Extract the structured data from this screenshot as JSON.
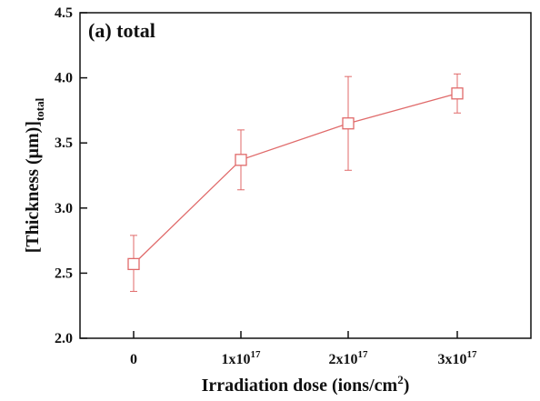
{
  "chart_data": {
    "type": "line",
    "title": "(a) total",
    "xlabel": {
      "main": "Irradiation dose (ions/cm",
      "sup": "2",
      "close": ")"
    },
    "ylabel": {
      "main": "[Thickness (μm)]",
      "sub": "total"
    },
    "x_ticks": [
      {
        "base": "0",
        "exp": ""
      },
      {
        "base": "1x10",
        "exp": "17"
      },
      {
        "base": "2x10",
        "exp": "17"
      },
      {
        "base": "3x10",
        "exp": "17"
      }
    ],
    "y_ticks": [
      "2.0",
      "2.5",
      "3.0",
      "3.5",
      "4.0",
      "4.5"
    ],
    "ylim": [
      2.0,
      4.5
    ],
    "x": [
      0,
      1e+17,
      2e+17,
      3e+17
    ],
    "series": [
      {
        "values": [
          2.57,
          3.37,
          3.65,
          3.88
        ],
        "error_low": [
          2.36,
          3.14,
          3.29,
          3.73
        ],
        "error_high": [
          2.79,
          3.6,
          4.01,
          4.03
        ],
        "color": "#e06a6a",
        "marker": "open-square"
      }
    ],
    "grid": false
  }
}
